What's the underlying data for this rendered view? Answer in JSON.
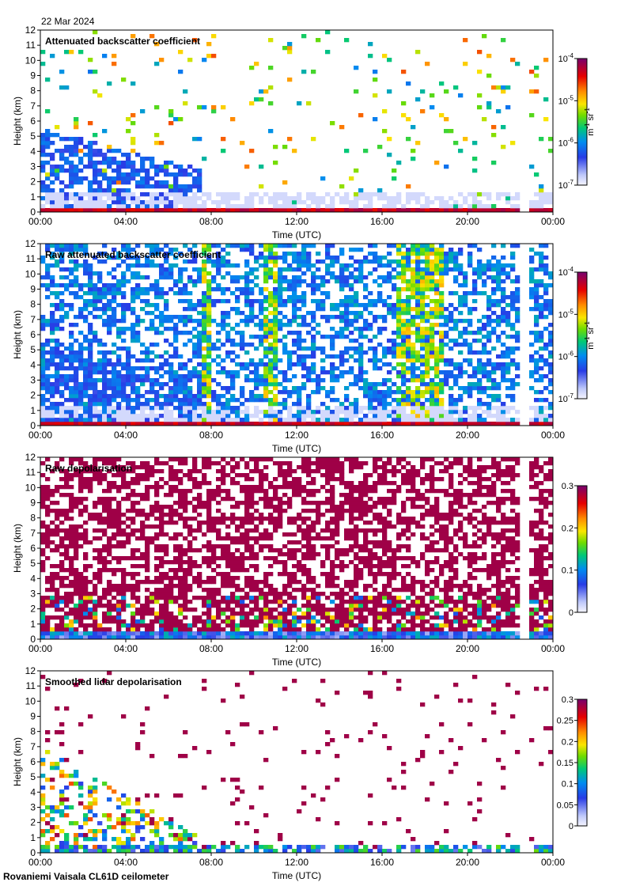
{
  "date": "22 Mar 2024",
  "site": "Rovaniemi Vaisala CL61D ceilometer",
  "chart_data": [
    {
      "type": "heatmap",
      "title": "Attenuated backscatter coefficient",
      "xlabel": "Time (UTC)",
      "ylabel": "Height (km)",
      "xlim": [
        0,
        24
      ],
      "ylim": [
        0,
        12
      ],
      "x_ticks": [
        "00:00",
        "04:00",
        "08:00",
        "12:00",
        "16:00",
        "20:00",
        "00:00"
      ],
      "y_ticks": [
        "0",
        "1",
        "2",
        "3",
        "4",
        "5",
        "6",
        "7",
        "8",
        "9",
        "10",
        "11",
        "12"
      ],
      "colorbar": {
        "scale": "log",
        "range": [
          1e-07,
          0.0001
        ],
        "ticks": [
          {
            "base": "10",
            "exp": "-7"
          },
          {
            "base": "10",
            "exp": "-6"
          },
          {
            "base": "10",
            "exp": "-5"
          },
          {
            "base": "10",
            "exp": "-4"
          }
        ],
        "unit": {
          "a": "m",
          "a_exp": "-1",
          "b": "sr",
          "b_exp": "-1"
        }
      }
    },
    {
      "type": "heatmap",
      "title": "Raw attenuated backscatter coefficient",
      "xlabel": "Time (UTC)",
      "ylabel": "Height (km)",
      "xlim": [
        0,
        24
      ],
      "ylim": [
        0,
        12
      ],
      "x_ticks": [
        "00:00",
        "04:00",
        "08:00",
        "12:00",
        "16:00",
        "20:00",
        "00:00"
      ],
      "y_ticks": [
        "0",
        "1",
        "2",
        "3",
        "4",
        "5",
        "6",
        "7",
        "8",
        "9",
        "10",
        "11",
        "12"
      ],
      "colorbar": {
        "scale": "log",
        "range": [
          1e-07,
          0.0001
        ],
        "ticks": [
          {
            "base": "10",
            "exp": "-7"
          },
          {
            "base": "10",
            "exp": "-6"
          },
          {
            "base": "10",
            "exp": "-5"
          },
          {
            "base": "10",
            "exp": "-4"
          }
        ],
        "unit": {
          "a": "m",
          "a_exp": "-1",
          "b": "sr",
          "b_exp": "-1"
        }
      }
    },
    {
      "type": "heatmap",
      "title": "Raw depolarisation",
      "xlabel": "Time (UTC)",
      "ylabel": "Height (km)",
      "xlim": [
        0,
        24
      ],
      "ylim": [
        0,
        12
      ],
      "x_ticks": [
        "00:00",
        "04:00",
        "08:00",
        "12:00",
        "16:00",
        "20:00",
        "00:00"
      ],
      "y_ticks": [
        "0",
        "1",
        "2",
        "3",
        "4",
        "5",
        "6",
        "7",
        "8",
        "9",
        "10",
        "11",
        "12"
      ],
      "colorbar": {
        "scale": "linear",
        "range": [
          0,
          0.3
        ],
        "ticks": [
          {
            "v": 0,
            "label": "0"
          },
          {
            "v": 0.1,
            "label": "0.1"
          },
          {
            "v": 0.2,
            "label": "0.2"
          },
          {
            "v": 0.3,
            "label": "0.3"
          }
        ]
      }
    },
    {
      "type": "heatmap",
      "title": "Smoothed lidar depolarisation",
      "xlabel": "Time (UTC)",
      "ylabel": "Height (km)",
      "xlim": [
        0,
        24
      ],
      "ylim": [
        0,
        12
      ],
      "x_ticks": [
        "00:00",
        "04:00",
        "08:00",
        "12:00",
        "16:00",
        "20:00",
        "00:00"
      ],
      "y_ticks": [
        "0",
        "1",
        "2",
        "3",
        "4",
        "5",
        "6",
        "7",
        "8",
        "9",
        "10",
        "11",
        "12"
      ],
      "colorbar": {
        "scale": "linear",
        "range": [
          0,
          0.3
        ],
        "ticks": [
          {
            "v": 0,
            "label": "0"
          },
          {
            "v": 0.05,
            "label": "0.05"
          },
          {
            "v": 0.1,
            "label": "0.1"
          },
          {
            "v": 0.15,
            "label": "0.15"
          },
          {
            "v": 0.2,
            "label": "0.2"
          },
          {
            "v": 0.25,
            "label": "0.25"
          },
          {
            "v": 0.3,
            "label": "0.3"
          }
        ]
      }
    }
  ]
}
